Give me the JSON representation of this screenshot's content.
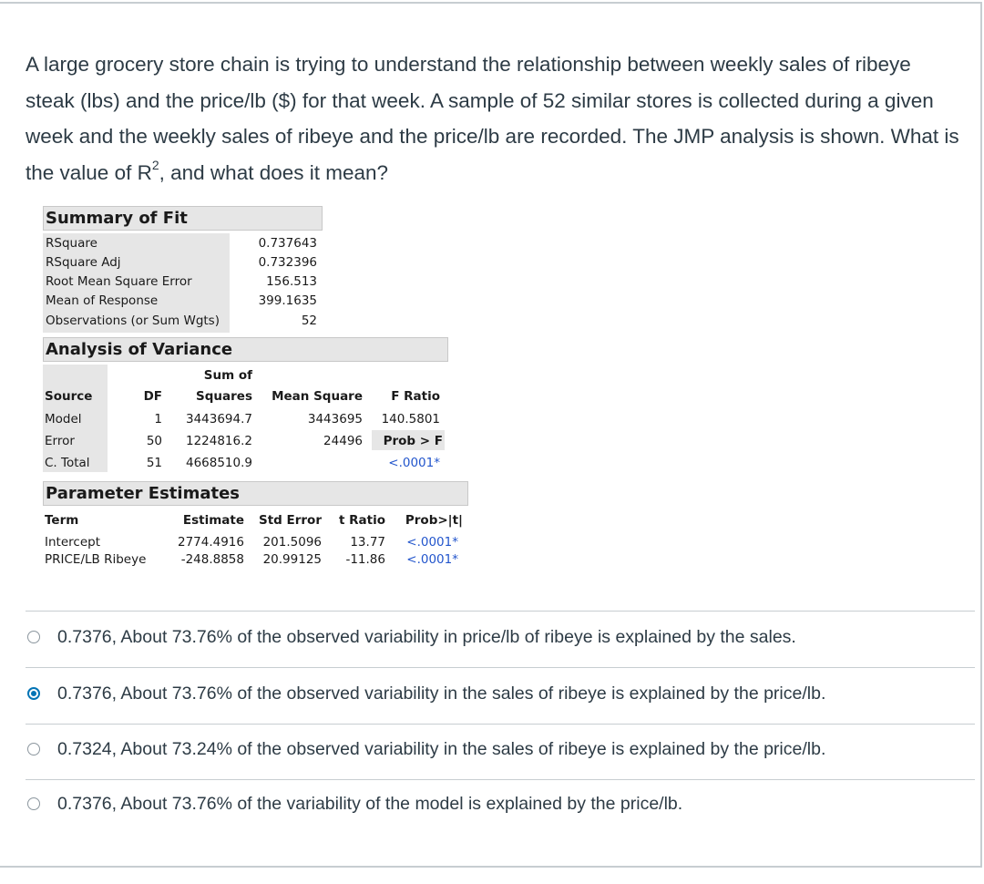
{
  "question": {
    "text_before_sup": "A large grocery store chain is trying to understand the relationship between weekly sales of ribeye steak (lbs) and the price/lb ($) for that week. A sample of 52 similar stores is collected during a given week and the weekly sales of ribeye and the price/lb are recorded. The JMP analysis is shown.  What is the value of R",
    "sup": "2",
    "text_after_sup": ", and what does it mean?"
  },
  "summary_of_fit": {
    "title": "Summary of Fit",
    "rows": [
      {
        "label": "RSquare",
        "value": "0.737643"
      },
      {
        "label": "RSquare Adj",
        "value": "0.732396"
      },
      {
        "label": "Root Mean Square Error",
        "value": "156.513"
      },
      {
        "label": "Mean of Response",
        "value": "399.1635"
      },
      {
        "label": "Observations (or Sum Wgts)",
        "value": "52"
      }
    ]
  },
  "anova": {
    "title": "Analysis of Variance",
    "headers": {
      "source": "Source",
      "df": "DF",
      "ss_top": "Sum of",
      "ss": "Squares",
      "ms": "Mean Square",
      "f": "F Ratio"
    },
    "rows": [
      {
        "source": "Model",
        "df": "1",
        "ss": "3443694.7",
        "ms": "3443695",
        "f": "140.5801"
      },
      {
        "source": "Error",
        "df": "50",
        "ss": "1224816.2",
        "ms": "24496",
        "f": "Prob > F"
      },
      {
        "source": "C. Total",
        "df": "51",
        "ss": "4668510.9",
        "ms": "",
        "f": "<.0001*"
      }
    ]
  },
  "parameter_estimates": {
    "title": "Parameter Estimates",
    "headers": {
      "term": "Term",
      "estimate": "Estimate",
      "std_error": "Std Error",
      "t_ratio": "t Ratio",
      "prob": "Prob>|t|"
    },
    "rows": [
      {
        "term": "Intercept",
        "estimate": "2774.4916",
        "std_error": "201.5096",
        "t_ratio": "13.77",
        "prob": "<.0001*"
      },
      {
        "term": "PRICE/LB Ribeye",
        "estimate": "-248.8858",
        "std_error": "20.99125",
        "t_ratio": "-11.86",
        "prob": "<.0001*"
      }
    ]
  },
  "choices": [
    {
      "label": "0.7376, About 73.76% of the observed variability in price/lb of ribeye is explained by the sales.",
      "selected": false
    },
    {
      "label": "0.7376, About 73.76% of the observed variability in the sales of ribeye is explained by the price/lb.",
      "selected": true
    },
    {
      "label": "0.7324, About 73.24% of the observed variability in the sales of ribeye is explained by the price/lb.",
      "selected": false
    },
    {
      "label": "0.7376, About 73.76% of the variability of the model is explained by the price/lb.",
      "selected": false
    }
  ],
  "colors": {
    "text": "#2d3b45",
    "accent": "#0374b5",
    "border": "#c7cdd1",
    "jmp_blue": "#2255cc"
  }
}
